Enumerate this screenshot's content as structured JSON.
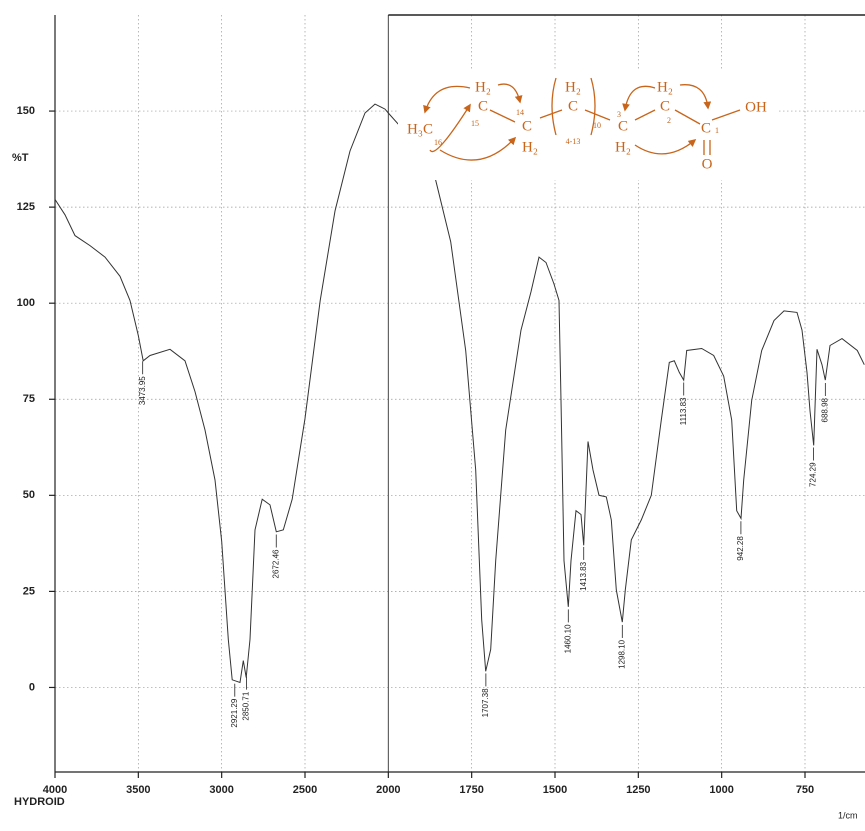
{
  "chart_data": {
    "type": "line",
    "y_label": "%T",
    "x_unit_label": "1/cm",
    "sample_label": "HYDROID",
    "color": "#333333",
    "grid": true,
    "xlim": [
      4000,
      570
    ],
    "xticks": [
      4000,
      3500,
      3000,
      2500,
      2000,
      1750,
      1500,
      1250,
      1000,
      750
    ],
    "ylim": [
      -22,
      175
    ],
    "yticks": [
      0,
      25,
      50,
      75,
      100,
      125,
      150
    ],
    "x": [
      4000,
      3940,
      3880,
      3790,
      3700,
      3610,
      3550,
      3500,
      3471,
      3430,
      3310,
      3220,
      3160,
      3100,
      3040,
      3000,
      2960,
      2937,
      2890,
      2870,
      2853,
      2830,
      2800,
      2757,
      2710,
      2672,
      2630,
      2577,
      2500,
      2409,
      2320,
      2230,
      2140,
      2080,
      2020,
      2000,
      1964,
      1904,
      1858,
      1813,
      1768,
      1738,
      1720,
      1708,
      1693,
      1678,
      1648,
      1602,
      1572,
      1548,
      1527,
      1503,
      1488,
      1482,
      1473,
      1460,
      1452,
      1437,
      1422,
      1414,
      1401,
      1386,
      1368,
      1346,
      1331,
      1316,
      1298,
      1289,
      1271,
      1241,
      1211,
      1181,
      1157,
      1142,
      1127,
      1114,
      1105,
      1060,
      1024,
      994,
      970,
      955,
      942,
      934,
      910,
      880,
      843,
      813,
      774,
      759,
      744,
      735,
      724,
      714,
      699,
      689,
      675,
      639,
      593,
      572
    ],
    "values": [
      127,
      123,
      117.6,
      115,
      112,
      107,
      100.7,
      91.6,
      85,
      86.4,
      88,
      85,
      77,
      67,
      54,
      38,
      12.5,
      2,
      1.3,
      7,
      2.6,
      12.5,
      41,
      49,
      47.5,
      40.5,
      41,
      49,
      70,
      100.7,
      124,
      139.6,
      149.5,
      151.8,
      150.5,
      149.5,
      146,
      139.6,
      132,
      116,
      87.7,
      56.6,
      17.6,
      4.2,
      9.9,
      33,
      67,
      93,
      103,
      112,
      110.6,
      105,
      100.7,
      74.7,
      33,
      21,
      33,
      46,
      45,
      37,
      64,
      56.6,
      50,
      49.6,
      43.6,
      25.4,
      17,
      25.4,
      38.4,
      43.6,
      50,
      69.6,
      84.6,
      85,
      82,
      80,
      87.7,
      88.2,
      86.4,
      81,
      69.6,
      46,
      44,
      54,
      74.7,
      87.7,
      95.5,
      98,
      97.6,
      93,
      82,
      72,
      63,
      88,
      84,
      80,
      89,
      90.8,
      87.7,
      84
    ],
    "peaks": [
      {
        "value": 3473.95,
        "label": "3473.95"
      },
      {
        "value": 2921.29,
        "label": "2921.29"
      },
      {
        "value": 2850.71,
        "label": "2850.71"
      },
      {
        "value": 2672.46,
        "label": "2672.46"
      },
      {
        "value": 1707.38,
        "label": "1707.38"
      },
      {
        "value": 1460.1,
        "label": "1460.10"
      },
      {
        "value": 1413.83,
        "label": "1413.83"
      },
      {
        "value": 1298.1,
        "label": "1298.10"
      },
      {
        "value": 1113.83,
        "label": "1113.83"
      },
      {
        "value": 942.28,
        "label": "942.28"
      },
      {
        "value": 724.29,
        "label": "724.29"
      },
      {
        "value": 688.98,
        "label": "688.98"
      }
    ]
  },
  "structure": [
    "H₂",
    "C",
    "H₃C",
    "16",
    "15",
    "14",
    "C",
    "H₂",
    "H₂",
    "C",
    "4-13",
    "10",
    "3",
    "C",
    "H₂",
    "H₂",
    "C",
    "2",
    "C",
    "1",
    "O",
    "OH"
  ]
}
